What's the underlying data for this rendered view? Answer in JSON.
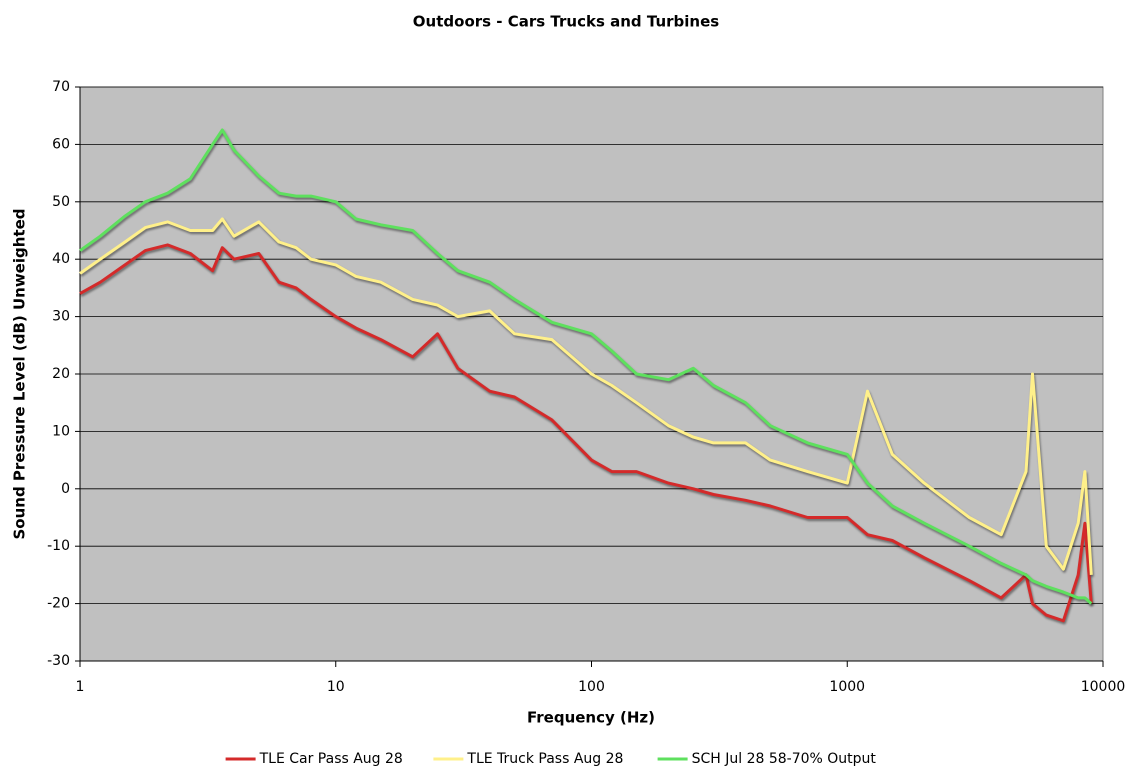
{
  "chart_data": {
    "type": "line",
    "title": "Outdoors - Cars Trucks and Turbines",
    "x_label": "Frequency (Hz)",
    "y_label": "Sound Pressure Level (dB) Unweighted",
    "log_x": true,
    "grid": true,
    "legend": "bottom",
    "x": [
      1,
      1.2,
      1.5,
      1.8,
      2.2,
      2.7,
      3.3,
      3.6,
      4,
      5,
      6,
      7,
      8,
      10,
      12,
      15,
      20,
      25,
      30,
      40,
      50,
      70,
      100,
      120,
      150,
      200,
      250,
      300,
      400,
      500,
      700,
      1000,
      1200,
      1500,
      2000,
      3000,
      4000,
      5000,
      5300,
      6000,
      7000,
      8000,
      8500,
      9000
    ],
    "series": [
      {
        "name": "TLE Car Pass Aug 28",
        "color": "#d42a2a",
        "values": [
          34,
          36,
          39,
          41.5,
          42.5,
          41,
          38,
          42,
          40,
          41,
          36,
          35,
          33,
          30,
          28,
          26,
          23,
          27,
          21,
          17,
          16,
          12,
          5,
          3,
          3,
          1,
          0,
          -1,
          -2,
          -3,
          -5,
          -5,
          -8,
          -9,
          -12,
          -16,
          -19,
          -15,
          -20,
          -22,
          -23,
          -15,
          -6,
          -20
        ]
      },
      {
        "name": "TLE Truck Pass Aug 28",
        "color": "#fff08a",
        "values": [
          37.5,
          40,
          43,
          45.5,
          46.5,
          45,
          45,
          47,
          44,
          46.5,
          43,
          42,
          40,
          39,
          37,
          36,
          33,
          32,
          30,
          31,
          27,
          26,
          20,
          18,
          15,
          11,
          9,
          8,
          8,
          5,
          3,
          1,
          17,
          6,
          1,
          -5,
          -8,
          3,
          20,
          -10,
          -14,
          -6,
          3,
          -15
        ]
      },
      {
        "name": "SCH Jul 28 58-70% Output",
        "color": "#5ee05e",
        "values": [
          41.5,
          44,
          47.5,
          50,
          51.5,
          54,
          60,
          62.5,
          59,
          54.5,
          51.5,
          51,
          51,
          50,
          47,
          46,
          45,
          41,
          38,
          36,
          33,
          29,
          27,
          24,
          20,
          19,
          21,
          18,
          15,
          11,
          8,
          6,
          1,
          -3,
          -6,
          -10,
          -13,
          -15,
          -16,
          -17,
          -18,
          -19,
          -19,
          -20
        ]
      }
    ],
    "xlim": [
      1,
      10000
    ],
    "xticks": [
      1,
      10,
      100,
      1000,
      10000
    ],
    "ylim": [
      -30,
      70
    ],
    "yticks": [
      -30,
      -20,
      -10,
      0,
      10,
      20,
      30,
      40,
      50,
      60,
      70
    ],
    "plot_background": "#c0c0c0"
  }
}
